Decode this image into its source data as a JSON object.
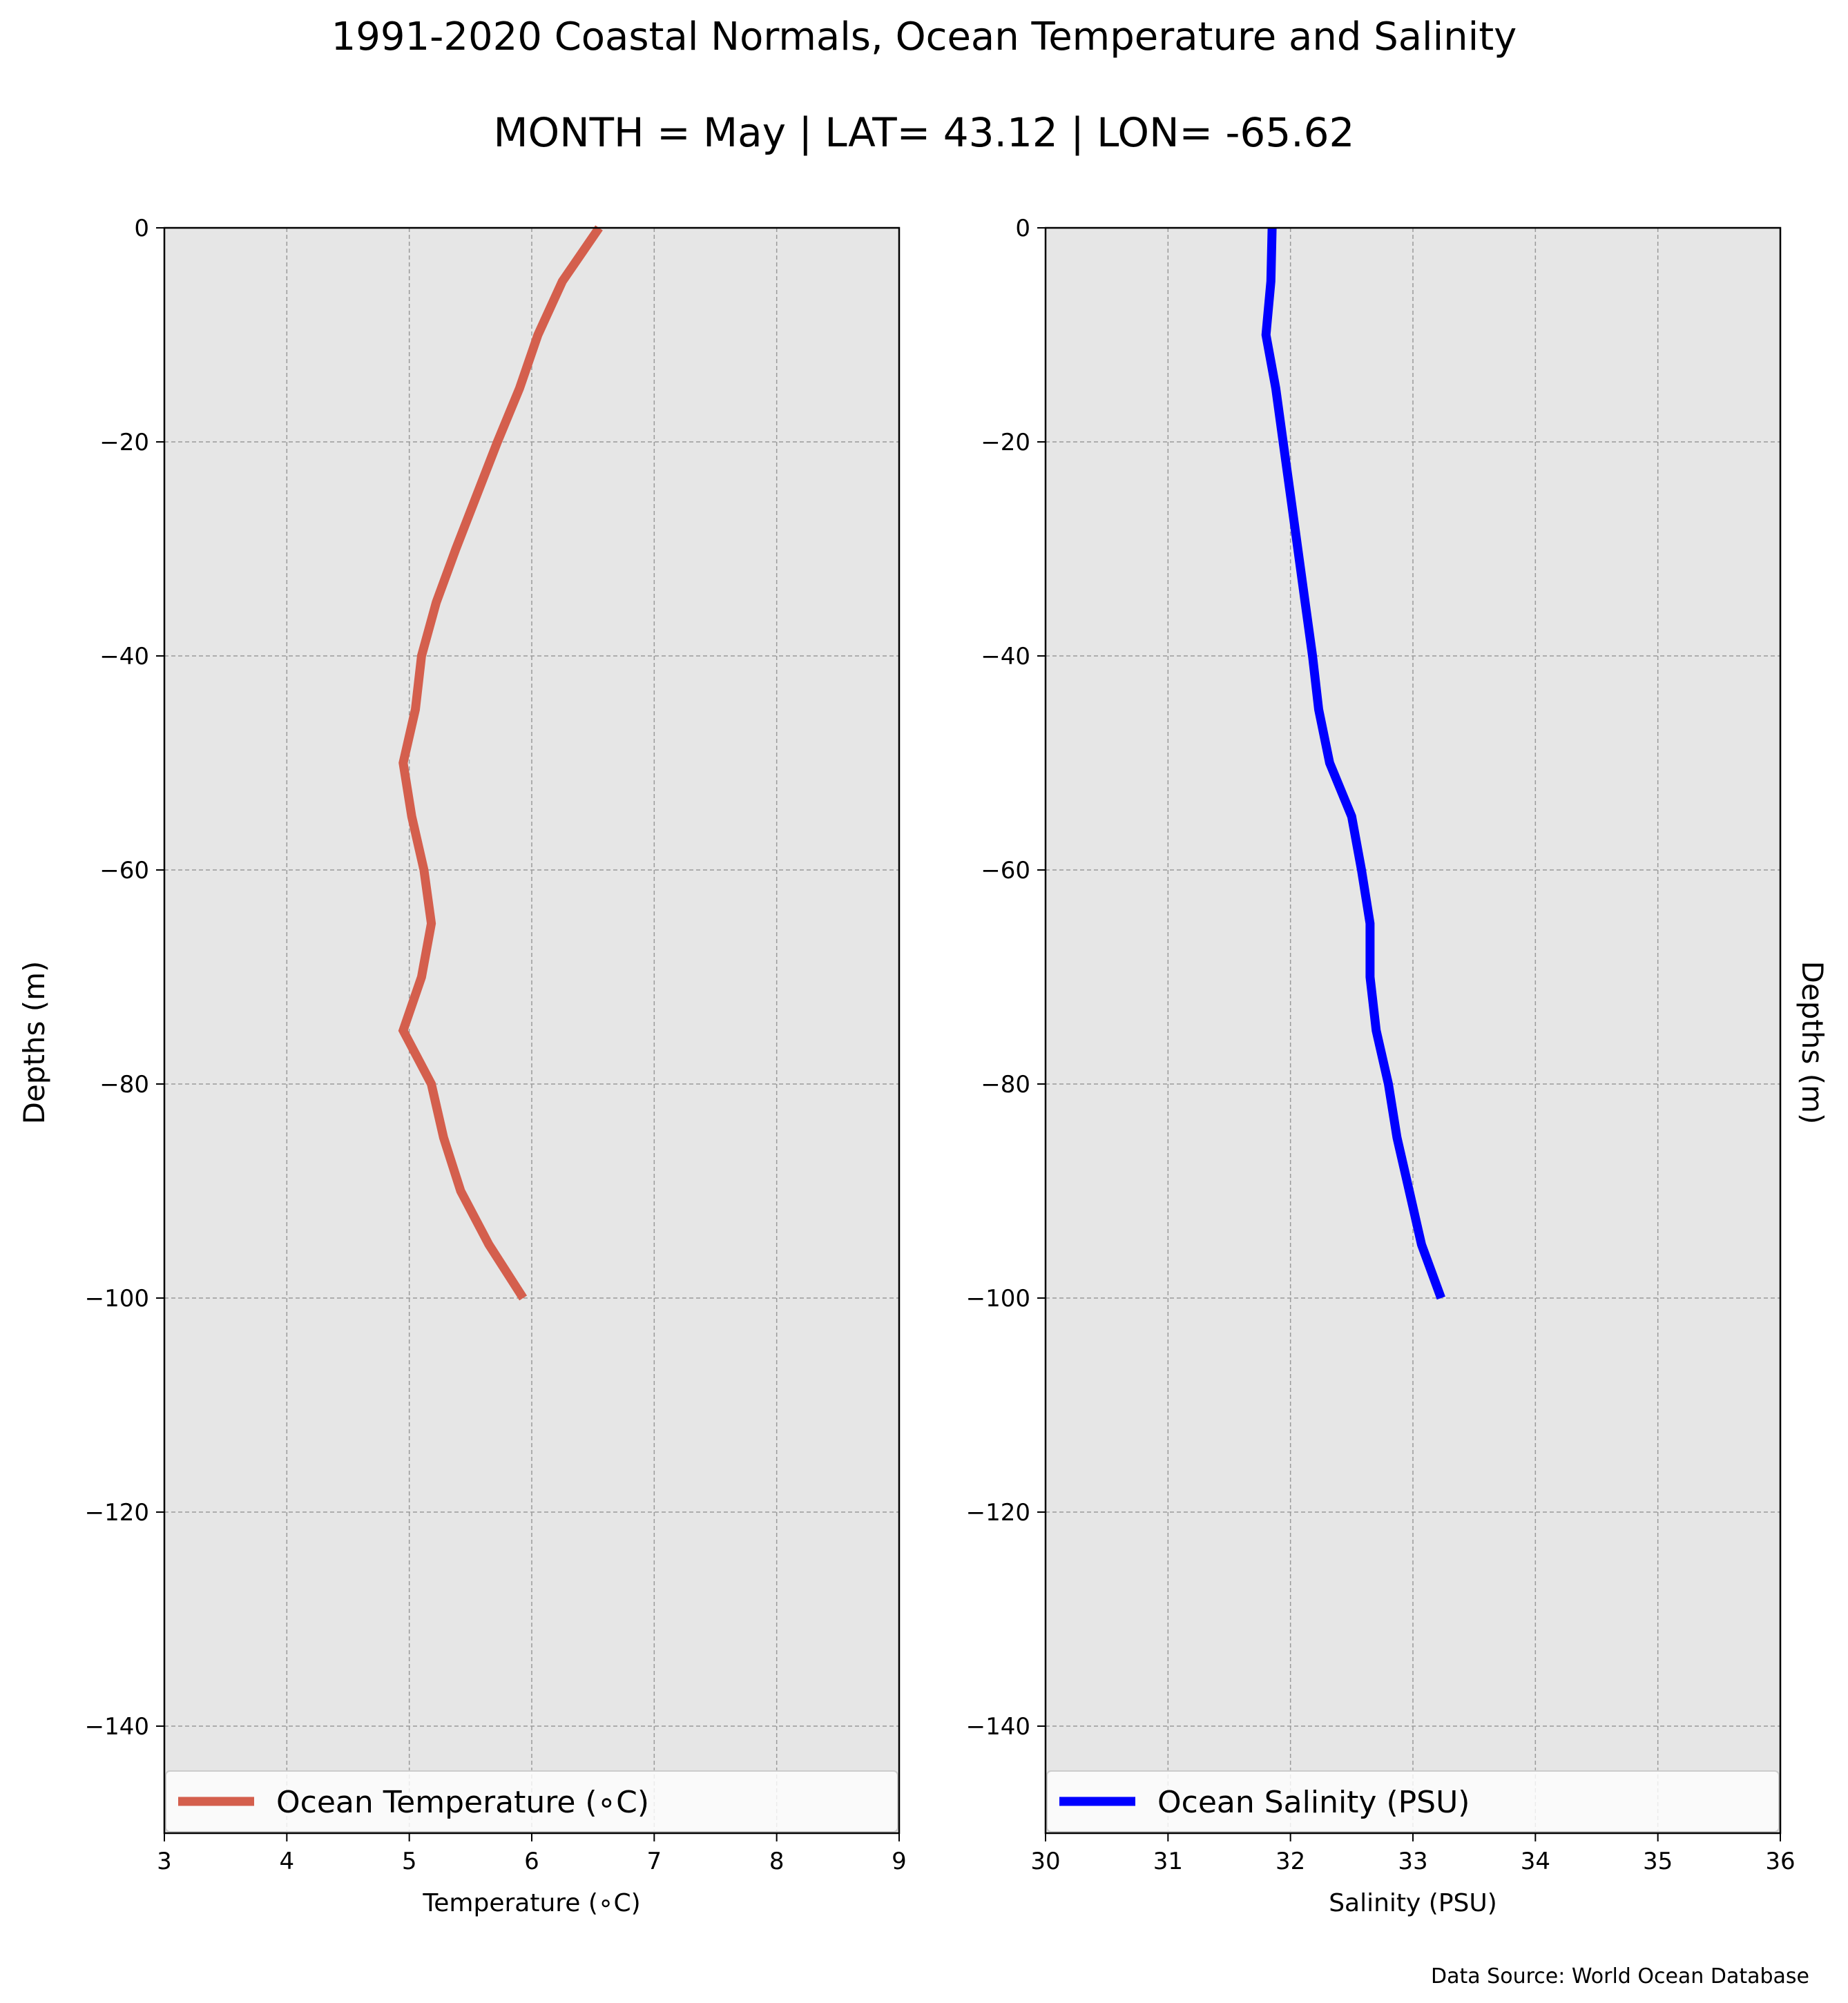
{
  "title": "1991-2020 Coastal Normals, Ocean Temperature and Salinity",
  "subtitle": "MONTH = May | LAT= 43.12 | LON= -65.62",
  "source_note": "Data Source: World Ocean Database",
  "colors": {
    "plot_background": "#e6e6e6",
    "grid": "#9a9a9a",
    "temperature_line": "#d45f4d",
    "salinity_line": "#0000ff"
  },
  "chart_data": [
    {
      "type": "line",
      "orientation": "profile",
      "xlabel": "Temperature ($^\\circ$C)",
      "xlabel_display": "Temperature (∘C)",
      "ylabel": "Depths (m)",
      "xlim": [
        3,
        9
      ],
      "ylim": [
        -150,
        0
      ],
      "xticks": [
        3,
        4,
        5,
        6,
        7,
        8,
        9
      ],
      "xtick_labels": [
        "3",
        "4",
        "5",
        "6",
        "7",
        "8",
        "9"
      ],
      "yticks": [
        0,
        -20,
        -40,
        -60,
        -80,
        -100,
        -120,
        -140
      ],
      "ytick_labels": [
        "0",
        "−20",
        "−40",
        "−60",
        "−80",
        "−100",
        "−120",
        "−140"
      ],
      "grid": true,
      "legend": "lower center",
      "series": [
        {
          "name": "Ocean Temperature (∘C)",
          "color": "#d45f4d",
          "x": [
            6.55,
            6.25,
            6.05,
            5.9,
            5.72,
            5.55,
            5.38,
            5.22,
            5.1,
            5.05,
            4.95,
            5.02,
            5.12,
            5.18,
            5.1,
            4.95,
            5.18,
            5.28,
            5.42,
            5.65,
            5.93
          ],
          "y": [
            0,
            -5,
            -10,
            -15,
            -20,
            -25,
            -30,
            -35,
            -40,
            -45,
            -50,
            -55,
            -60,
            -65,
            -70,
            -75,
            -80,
            -85,
            -90,
            -95,
            -100
          ]
        }
      ]
    },
    {
      "type": "line",
      "orientation": "profile",
      "xlabel": "Salinity (PSU)",
      "ylabel": "Depths (m)",
      "xlim": [
        30,
        36
      ],
      "ylim": [
        -150,
        0
      ],
      "xticks": [
        30,
        31,
        32,
        33,
        34,
        35,
        36
      ],
      "xtick_labels": [
        "30",
        "31",
        "32",
        "33",
        "34",
        "35",
        "36"
      ],
      "yticks": [
        0,
        -20,
        -40,
        -60,
        -80,
        -100,
        -120,
        -140
      ],
      "ytick_labels": [
        "0",
        "−20",
        "−40",
        "−60",
        "−80",
        "−100",
        "−120",
        "−140"
      ],
      "grid": true,
      "legend": "lower center",
      "series": [
        {
          "name": "Ocean Salinity (PSU)",
          "color": "#0000ff",
          "x": [
            31.85,
            31.84,
            31.8,
            31.88,
            31.94,
            32.0,
            32.06,
            32.12,
            32.18,
            32.23,
            32.32,
            32.5,
            32.58,
            32.65,
            32.65,
            32.7,
            32.8,
            32.87,
            32.97,
            33.07,
            33.23
          ],
          "y": [
            0,
            -5,
            -10,
            -15,
            -20,
            -25,
            -30,
            -35,
            -40,
            -45,
            -50,
            -55,
            -60,
            -65,
            -70,
            -75,
            -80,
            -85,
            -90,
            -95,
            -100
          ]
        }
      ]
    }
  ]
}
